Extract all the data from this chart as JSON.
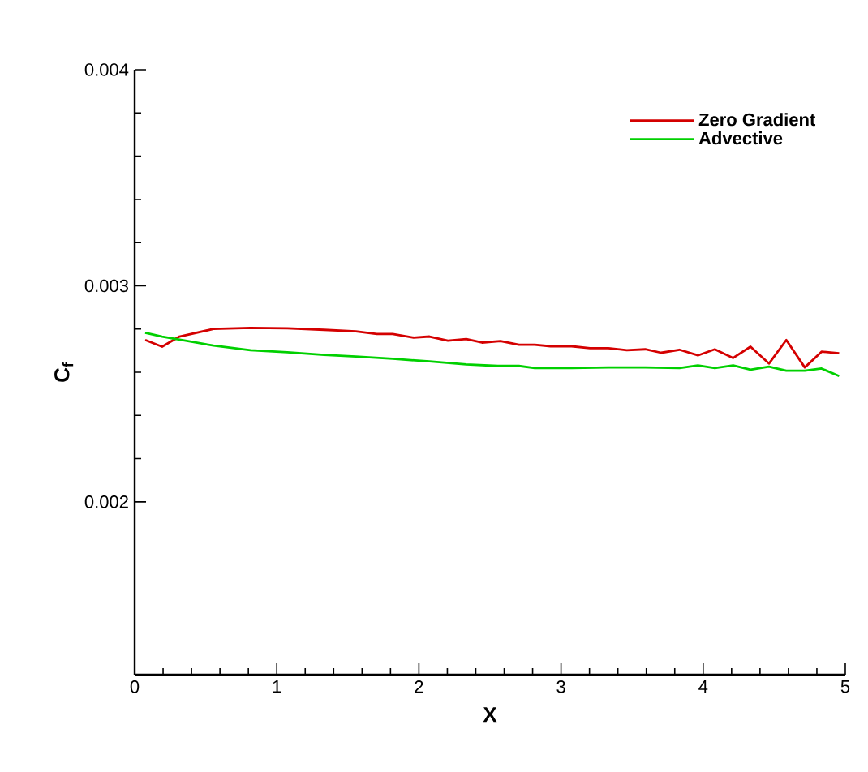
{
  "chart_data": {
    "type": "line",
    "xlabel": "X",
    "ylabel": "C$_{f}$",
    "xlim": [
      0,
      5
    ],
    "ylim": [
      0.0012,
      0.004
    ],
    "xticks": [
      0,
      1,
      2,
      3,
      4,
      5
    ],
    "yticks": [
      0.002,
      0.003,
      0.004
    ],
    "grid": false,
    "legend": "top right",
    "marker": "none",
    "line_style": "solid",
    "series": [
      {
        "name": "Zero Gradient",
        "color": "#d40000",
        "x": [
          0.074,
          0.193,
          0.315,
          0.555,
          0.815,
          1.074,
          1.333,
          1.556,
          1.704,
          1.815,
          1.963,
          2.074,
          2.204,
          2.333,
          2.444,
          2.574,
          2.704,
          2.815,
          2.926,
          3.074,
          3.204,
          3.333,
          3.463,
          3.593,
          3.704,
          3.833,
          3.963,
          4.082,
          4.211,
          4.333,
          4.463,
          4.585,
          4.715,
          4.833,
          4.957
        ],
        "values": [
          0.002749,
          0.002718,
          0.002765,
          0.0028,
          0.002805,
          0.002803,
          0.002796,
          0.002789,
          0.002777,
          0.002777,
          0.00276,
          0.002765,
          0.002746,
          0.002753,
          0.002737,
          0.002744,
          0.002727,
          0.002727,
          0.00272,
          0.00272,
          0.002711,
          0.002711,
          0.002702,
          0.002706,
          0.00269,
          0.002704,
          0.002678,
          0.002706,
          0.002666,
          0.002718,
          0.00264,
          0.002749,
          0.002622,
          0.002695,
          0.002688
        ]
      },
      {
        "name": "Advective",
        "color": "#00d000",
        "x": [
          0.074,
          0.193,
          0.334,
          0.555,
          0.815,
          1.074,
          1.333,
          1.556,
          1.815,
          2.074,
          2.333,
          2.556,
          2.704,
          2.815,
          3.074,
          3.333,
          3.593,
          3.833,
          3.963,
          4.082,
          4.211,
          4.333,
          4.463,
          4.585,
          4.715,
          4.833,
          4.957
        ],
        "values": [
          0.002782,
          0.002765,
          0.002749,
          0.002723,
          0.002702,
          0.002692,
          0.00268,
          0.002673,
          0.002662,
          0.00265,
          0.002636,
          0.002629,
          0.002629,
          0.002619,
          0.002619,
          0.002622,
          0.002622,
          0.002619,
          0.002631,
          0.002619,
          0.002631,
          0.002612,
          0.002626,
          0.002607,
          0.002607,
          0.002617,
          0.002582
        ]
      }
    ]
  }
}
